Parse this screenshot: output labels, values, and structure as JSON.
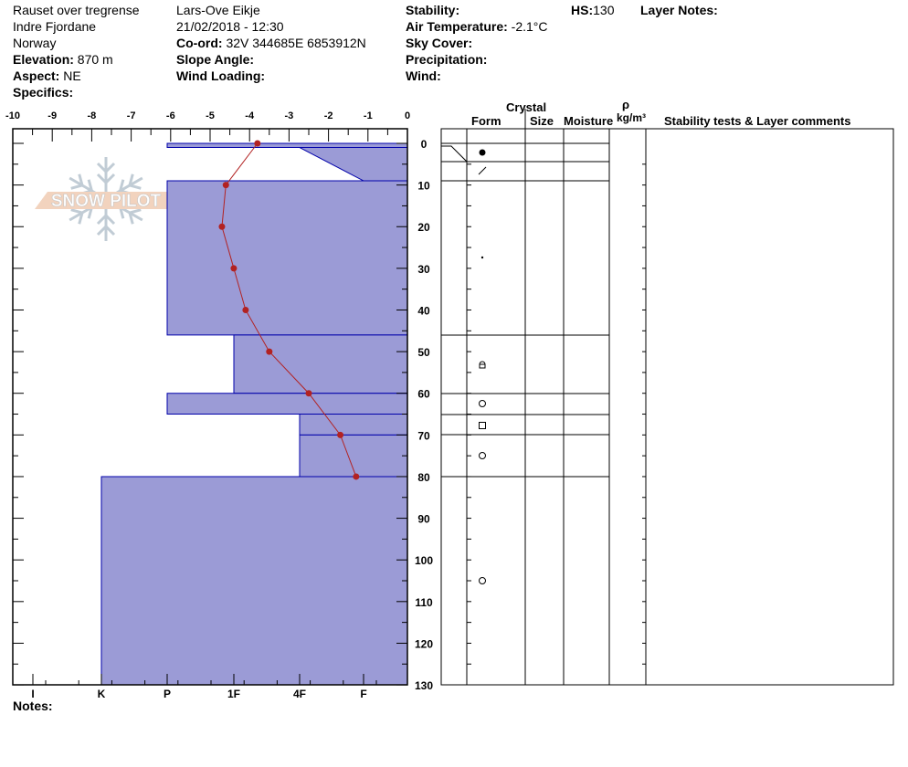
{
  "header": {
    "location": "Rauset over tregrense",
    "region": "Indre Fjordane",
    "country": "Norway",
    "elevation_label": "Elevation:",
    "elevation": "870 m",
    "aspect_label": "Aspect:",
    "aspect": "NE",
    "specifics_label": "Specifics:",
    "observer": "Lars-Ove Eikje",
    "datetime": "21/02/2018 - 12:30",
    "coord_label": "Co-ord:",
    "coord": "32V 344685E 6853912N",
    "slope_label": "Slope Angle:",
    "wind_loading_label": "Wind Loading:",
    "stability_label": "Stability:",
    "air_temp_label": "Air Temperature:",
    "air_temp": "-2.1°C",
    "sky_label": "Sky Cover:",
    "precip_label": "Precipitation:",
    "wind_label": "Wind:",
    "hs_label": "HS:",
    "hs": "130",
    "layer_notes_label": "Layer Notes:"
  },
  "columns": {
    "crystal": "Crystal",
    "form": "Form",
    "size": "Size",
    "moisture": "Moisture",
    "rho": "ρ",
    "density_unit": "kg/m³",
    "comments": "Stability tests & Layer comments"
  },
  "notes_label": "Notes:",
  "watermark": "SNOW PILOT",
  "colors": {
    "layer_fill": "#9b9bd6",
    "layer_stroke": "#0000aa",
    "temp": "#b22222"
  },
  "chart_data": {
    "type": "line",
    "temp_axis": {
      "ticks": [
        -10,
        -9,
        -8,
        -7,
        -6,
        -5,
        -4,
        -3,
        -2,
        -1,
        0
      ],
      "range": [
        -10,
        0
      ]
    },
    "depth_axis": {
      "ticks": [
        0,
        10,
        20,
        30,
        40,
        50,
        60,
        70,
        80,
        90,
        100,
        110,
        120,
        130
      ],
      "range": [
        0,
        130
      ]
    },
    "hardness_axis": {
      "ticks": [
        "I",
        "K",
        "P",
        "1F",
        "4F",
        "F"
      ]
    },
    "temperature_profile": {
      "depth": [
        0,
        10,
        20,
        30,
        40,
        50,
        60,
        70,
        80
      ],
      "temp": [
        -3.8,
        -4.6,
        -4.7,
        -4.4,
        -4.1,
        -3.5,
        -2.5,
        -1.7,
        -1.3
      ]
    },
    "layers": [
      {
        "top": 0,
        "bottom": 1,
        "hardness_top": "P",
        "hardness_bottom": "P",
        "form": "graupel-dot"
      },
      {
        "top": 1,
        "bottom": 9,
        "hardness_top": "4F",
        "hardness_bottom": "F",
        "form": "slash"
      },
      {
        "top": 9,
        "bottom": 46,
        "hardness_top": "P",
        "hardness_bottom": "P",
        "form": "small-dot"
      },
      {
        "top": 46,
        "bottom": 60,
        "hardness_top": "1F",
        "hardness_bottom": "1F",
        "form": "faceted-rounded"
      },
      {
        "top": 60,
        "bottom": 65,
        "hardness_top": "P",
        "hardness_bottom": "P",
        "form": "circle"
      },
      {
        "top": 65,
        "bottom": 70,
        "hardness_top": "4F",
        "hardness_bottom": "4F",
        "form": "square"
      },
      {
        "top": 70,
        "bottom": 80,
        "hardness_top": "4F",
        "hardness_bottom": "4F",
        "form": "circle"
      },
      {
        "top": 80,
        "bottom": 130,
        "hardness_top": "K",
        "hardness_bottom": "K",
        "form": "circle"
      }
    ]
  }
}
